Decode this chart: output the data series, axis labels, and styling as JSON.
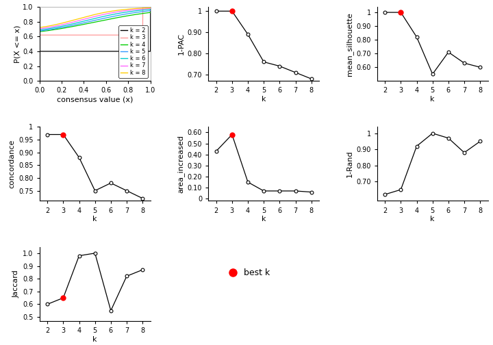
{
  "k_values": [
    2,
    3,
    4,
    5,
    6,
    7,
    8
  ],
  "pac_1minus": [
    1.0,
    1.0,
    0.89,
    0.76,
    0.74,
    0.71,
    0.68
  ],
  "mean_silhouette": [
    1.0,
    1.0,
    0.82,
    0.55,
    0.71,
    0.63,
    0.6
  ],
  "concordance": [
    0.97,
    0.97,
    0.88,
    0.75,
    0.78,
    0.75,
    0.72
  ],
  "area_increased": [
    0.43,
    0.58,
    0.15,
    0.07,
    0.07,
    0.07,
    0.06
  ],
  "irand": [
    0.62,
    0.65,
    0.92,
    1.0,
    0.97,
    0.88,
    0.95
  ],
  "jaccard": [
    0.6,
    0.65,
    0.98,
    1.0,
    0.55,
    0.82,
    0.87
  ],
  "best_k": 3,
  "ecdf_colors": [
    "#000000",
    "#FF9999",
    "#00CC00",
    "#3399FF",
    "#00CCCC",
    "#FF66FF",
    "#FFCC00"
  ],
  "ecdf_labels": [
    "k = 2",
    "k = 3",
    "k = 4",
    "k = 5",
    "k = 6",
    "k = 7",
    "k = 8"
  ],
  "filled_marker_color": "#FF0000",
  "bg_color": "#FFFFFF",
  "font_size": 8,
  "marker_size": 3.5
}
